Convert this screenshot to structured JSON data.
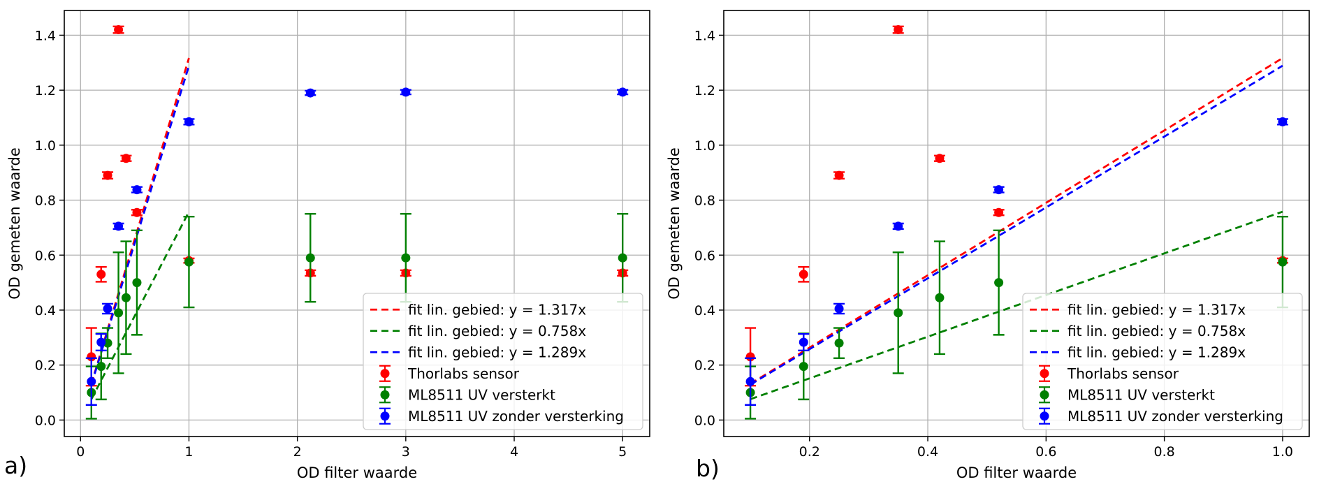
{
  "chart_data": [
    {
      "type": "scatter",
      "panel_label": "a)",
      "xlabel": "OD filter waarde",
      "ylabel": "OD gemeten waarde",
      "xlim": [
        -0.15,
        5.25
      ],
      "ylim": [
        -0.06,
        1.49
      ],
      "xticks": [
        0,
        1,
        2,
        3,
        4,
        5
      ],
      "yticks": [
        0.0,
        0.2,
        0.4,
        0.6,
        0.8,
        1.0,
        1.2,
        1.4
      ],
      "grid": true,
      "legend_position": "lower-right",
      "series": [
        {
          "name": "Thorlabs sensor",
          "kind": "errorbar",
          "color": "#ff0000",
          "points": [
            {
              "x": 0.1,
              "y": 0.23,
              "err": 0.105
            },
            {
              "x": 0.19,
              "y": 0.53,
              "err": 0.027
            },
            {
              "x": 0.25,
              "y": 0.89,
              "err": 0.012
            },
            {
              "x": 0.35,
              "y": 1.42,
              "err": 0.012
            },
            {
              "x": 0.42,
              "y": 0.952,
              "err": 0.01
            },
            {
              "x": 0.52,
              "y": 0.755,
              "err": 0.01
            },
            {
              "x": 1.0,
              "y": 0.58,
              "err": 0.008
            },
            {
              "x": 2.12,
              "y": 0.535,
              "err": 0.01
            },
            {
              "x": 3.0,
              "y": 0.535,
              "err": 0.01
            },
            {
              "x": 5.0,
              "y": 0.535,
              "err": 0.01
            }
          ]
        },
        {
          "name": "ML8511 UV versterkt",
          "kind": "errorbar",
          "color": "#008000",
          "points": [
            {
              "x": 0.1,
              "y": 0.1,
              "err": 0.095
            },
            {
              "x": 0.19,
              "y": 0.195,
              "err": 0.12
            },
            {
              "x": 0.25,
              "y": 0.28,
              "err": 0.055
            },
            {
              "x": 0.35,
              "y": 0.39,
              "err": 0.22
            },
            {
              "x": 0.42,
              "y": 0.445,
              "err": 0.205
            },
            {
              "x": 0.52,
              "y": 0.5,
              "err": 0.19
            },
            {
              "x": 1.0,
              "y": 0.575,
              "err": 0.165
            },
            {
              "x": 2.12,
              "y": 0.59,
              "err": 0.16
            },
            {
              "x": 3.0,
              "y": 0.59,
              "err": 0.16
            },
            {
              "x": 5.0,
              "y": 0.59,
              "err": 0.16
            }
          ]
        },
        {
          "name": "ML8511 UV zonder versterking",
          "kind": "errorbar",
          "color": "#0000ff",
          "points": [
            {
              "x": 0.1,
              "y": 0.14,
              "err": 0.085
            },
            {
              "x": 0.19,
              "y": 0.283,
              "err": 0.03
            },
            {
              "x": 0.25,
              "y": 0.405,
              "err": 0.018
            },
            {
              "x": 0.35,
              "y": 0.705,
              "err": 0.01
            },
            {
              "x": 0.52,
              "y": 0.838,
              "err": 0.01
            },
            {
              "x": 1.0,
              "y": 1.085,
              "err": 0.01
            },
            {
              "x": 2.12,
              "y": 1.19,
              "err": 0.008
            },
            {
              "x": 3.0,
              "y": 1.193,
              "err": 0.008
            },
            {
              "x": 5.0,
              "y": 1.193,
              "err": 0.008
            }
          ]
        },
        {
          "name": "fit lin. gebied: y = 1.317x",
          "kind": "fit",
          "color": "#ff0000",
          "slope": 1.317,
          "x_range": [
            0.1,
            1.0
          ]
        },
        {
          "name": "fit lin. gebied: y = 0.758x",
          "kind": "fit",
          "color": "#008000",
          "slope": 0.758,
          "x_range": [
            0.1,
            1.0
          ]
        },
        {
          "name": "fit lin. gebied: y = 1.289x",
          "kind": "fit",
          "color": "#0000ff",
          "slope": 1.289,
          "x_range": [
            0.1,
            1.0
          ]
        }
      ]
    },
    {
      "type": "scatter",
      "panel_label": "b)",
      "xlabel": "OD filter waarde",
      "ylabel": "OD gemeten waarde",
      "xlim": [
        0.055,
        1.045
      ],
      "ylim": [
        -0.06,
        1.49
      ],
      "xticks": [
        0.2,
        0.4,
        0.6,
        0.8,
        1.0
      ],
      "yticks": [
        0.0,
        0.2,
        0.4,
        0.6,
        0.8,
        1.0,
        1.2,
        1.4
      ],
      "grid": true,
      "legend_position": "lower-right",
      "series": [
        {
          "name": "Thorlabs sensor",
          "kind": "errorbar",
          "color": "#ff0000",
          "points": [
            {
              "x": 0.1,
              "y": 0.23,
              "err": 0.105
            },
            {
              "x": 0.19,
              "y": 0.53,
              "err": 0.027
            },
            {
              "x": 0.25,
              "y": 0.89,
              "err": 0.012
            },
            {
              "x": 0.35,
              "y": 1.42,
              "err": 0.012
            },
            {
              "x": 0.42,
              "y": 0.952,
              "err": 0.01
            },
            {
              "x": 0.52,
              "y": 0.755,
              "err": 0.01
            },
            {
              "x": 1.0,
              "y": 0.58,
              "err": 0.008
            }
          ]
        },
        {
          "name": "ML8511 UV versterkt",
          "kind": "errorbar",
          "color": "#008000",
          "points": [
            {
              "x": 0.1,
              "y": 0.1,
              "err": 0.095
            },
            {
              "x": 0.19,
              "y": 0.195,
              "err": 0.12
            },
            {
              "x": 0.25,
              "y": 0.28,
              "err": 0.055
            },
            {
              "x": 0.35,
              "y": 0.39,
              "err": 0.22
            },
            {
              "x": 0.42,
              "y": 0.445,
              "err": 0.205
            },
            {
              "x": 0.52,
              "y": 0.5,
              "err": 0.19
            },
            {
              "x": 1.0,
              "y": 0.575,
              "err": 0.165
            }
          ]
        },
        {
          "name": "ML8511 UV zonder versterking",
          "kind": "errorbar",
          "color": "#0000ff",
          "points": [
            {
              "x": 0.1,
              "y": 0.14,
              "err": 0.085
            },
            {
              "x": 0.19,
              "y": 0.283,
              "err": 0.03
            },
            {
              "x": 0.25,
              "y": 0.405,
              "err": 0.018
            },
            {
              "x": 0.35,
              "y": 0.705,
              "err": 0.01
            },
            {
              "x": 0.52,
              "y": 0.838,
              "err": 0.01
            },
            {
              "x": 1.0,
              "y": 1.085,
              "err": 0.01
            }
          ]
        },
        {
          "name": "fit lin. gebied: y = 1.317x",
          "kind": "fit",
          "color": "#ff0000",
          "slope": 1.317,
          "x_range": [
            0.1,
            1.0
          ]
        },
        {
          "name": "fit lin. gebied: y = 0.758x",
          "kind": "fit",
          "color": "#008000",
          "slope": 0.758,
          "x_range": [
            0.1,
            1.0
          ]
        },
        {
          "name": "fit lin. gebied: y = 1.289x",
          "kind": "fit",
          "color": "#0000ff",
          "slope": 1.289,
          "x_range": [
            0.1,
            1.0
          ]
        }
      ]
    }
  ]
}
